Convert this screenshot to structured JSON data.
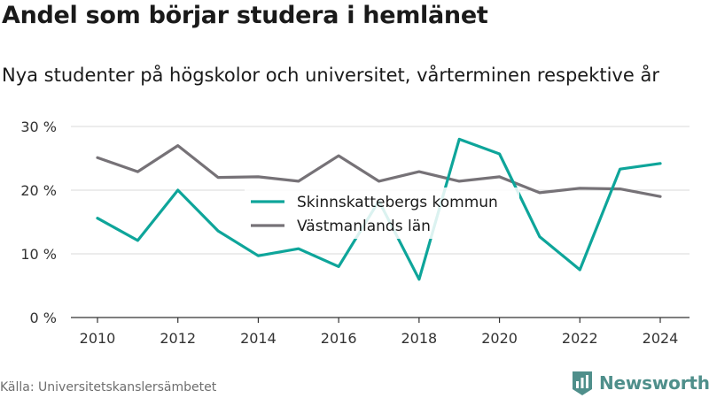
{
  "title": "Andel som börjar studera i hemlänet",
  "subtitle": "Nya studenter på högskolor och universitet, vårterminen respektive år",
  "source": "Källa: Universitetskanslersämbetet",
  "brand": "Newsworthy",
  "colors": {
    "series1": "#0ea59a",
    "series2": "#767277",
    "grid": "#d9d9d9",
    "axis": "#333333",
    "brand": "#4f8f8b"
  },
  "chart_data": {
    "type": "line",
    "x": [
      2010,
      2011,
      2012,
      2013,
      2014,
      2015,
      2016,
      2017,
      2018,
      2019,
      2020,
      2021,
      2022,
      2023,
      2024
    ],
    "series": [
      {
        "name": "Skinnskattebergs kommun",
        "values": [
          15.6,
          12.1,
          20.0,
          13.6,
          9.7,
          10.8,
          8.0,
          18.3,
          6.0,
          28.0,
          25.7,
          12.7,
          7.5,
          23.3,
          24.2
        ]
      },
      {
        "name": "Västmanlands län",
        "values": [
          25.1,
          22.9,
          27.0,
          22.0,
          22.1,
          21.4,
          25.4,
          21.4,
          22.9,
          21.4,
          22.1,
          19.6,
          20.3,
          20.2,
          19.0
        ]
      }
    ],
    "yticks": [
      0,
      10,
      20,
      30
    ],
    "ytick_labels": [
      "0 %",
      "10 %",
      "20 %",
      "30 %"
    ],
    "xticks": [
      2010,
      2012,
      2014,
      2016,
      2018,
      2020,
      2022,
      2024
    ],
    "xtick_labels": [
      "2010",
      "2012",
      "2014",
      "2016",
      "2018",
      "2020",
      "2022",
      "2024"
    ],
    "ylim": [
      0,
      30
    ],
    "xlim": [
      2010,
      2024
    ],
    "grid": true,
    "legend_position": "center"
  }
}
